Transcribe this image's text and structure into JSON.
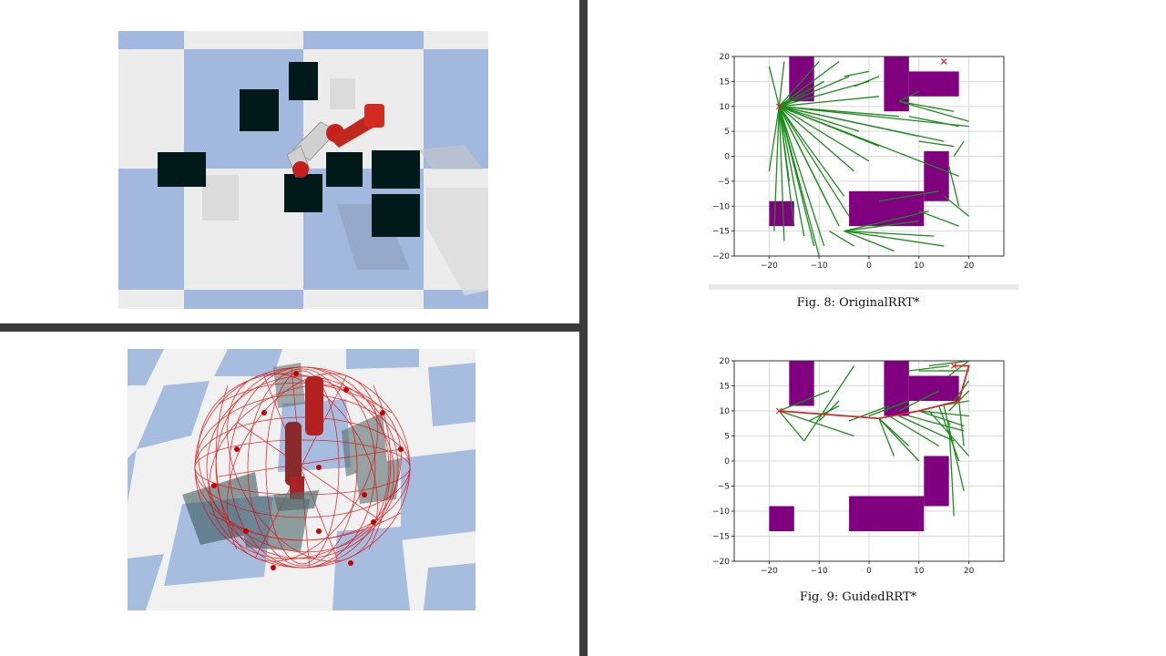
{
  "figures": {
    "fig8_caption": "Fig. 8: OriginalRRT*",
    "fig9_caption": "Fig. 9: GuidedRRT*"
  },
  "colors": {
    "divider": "#3b3b3b",
    "floor_blue": "#a3b8de",
    "floor_white": "#ececec",
    "obstacle_dark": "#021919",
    "robot_red": "#c81e1e",
    "robot_gray": "#cfcfcf",
    "tree_green": "#1a8c1a",
    "obstacle_purple": "#800080",
    "path_red": "#d62728"
  },
  "chart_data": [
    {
      "type": "scatter",
      "ticks_x": [
        "−20",
        "−10",
        "0",
        "10",
        "20"
      ],
      "ticks_y": [
        "20",
        "15",
        "10",
        "5",
        "0",
        "−5",
        "−10",
        "−15",
        "−20"
      ],
      "xlim": [
        -27,
        27
      ],
      "ylim": [
        -20,
        20
      ],
      "grid": true,
      "obstacles": [
        {
          "x0": -16,
          "x1": -11,
          "y0": 11,
          "y1": 20
        },
        {
          "x0": 3,
          "x1": 8,
          "y0": 9,
          "y1": 20
        },
        {
          "x0": 8,
          "x1": 18,
          "y0": 12,
          "y1": 17
        },
        {
          "x0": 11,
          "x1": 16,
          "y0": -9,
          "y1": 1
        },
        {
          "x0": -4,
          "x1": 11,
          "y0": -14,
          "y1": -7
        },
        {
          "x0": -20,
          "x1": -15,
          "y0": -14,
          "y1": -9
        }
      ],
      "start": [
        -18,
        10
      ],
      "goal": [
        15,
        19
      ],
      "tree_root": [
        -18,
        10
      ],
      "tree_segments": [
        [
          -18,
          10,
          -20,
          -3
        ],
        [
          -18,
          10,
          -19,
          -15
        ],
        [
          -18,
          10,
          -17,
          -17
        ],
        [
          -18,
          10,
          -15,
          -14
        ],
        [
          -18,
          10,
          -13,
          -16
        ],
        [
          -18,
          10,
          -11,
          -18
        ],
        [
          -18,
          10,
          -10,
          -20
        ],
        [
          -18,
          10,
          -9,
          -18
        ],
        [
          -18,
          10,
          -8,
          -10
        ],
        [
          -18,
          10,
          -6,
          -14
        ],
        [
          -18,
          10,
          -5,
          -8
        ],
        [
          -18,
          10,
          -4,
          -12
        ],
        [
          -18,
          10,
          -3,
          -3
        ],
        [
          -18,
          10,
          -16,
          -5
        ],
        [
          -18,
          10,
          -20,
          18
        ],
        [
          -18,
          10,
          -17,
          19
        ],
        [
          -18,
          10,
          -10,
          19
        ],
        [
          -18,
          10,
          -9,
          15
        ],
        [
          -18,
          10,
          -6,
          19
        ],
        [
          -18,
          10,
          -4,
          16
        ],
        [
          -18,
          10,
          0,
          15
        ],
        [
          -18,
          10,
          2,
          12
        ],
        [
          -18,
          10,
          6,
          8
        ],
        [
          -18,
          10,
          10,
          4
        ],
        [
          -18,
          10,
          15,
          3
        ],
        [
          -18,
          10,
          18,
          -4
        ],
        [
          -18,
          10,
          20,
          6
        ],
        [
          -18,
          10,
          2,
          2
        ],
        [
          -18,
          10,
          -2,
          5
        ],
        [
          -18,
          10,
          0,
          -1
        ],
        [
          -5,
          16,
          0,
          17
        ],
        [
          -3,
          14,
          2,
          16
        ],
        [
          6,
          11,
          10,
          13
        ],
        [
          6,
          11,
          17,
          9
        ],
        [
          6,
          11,
          20,
          7
        ],
        [
          8,
          8,
          18,
          6
        ],
        [
          10,
          3,
          17,
          2
        ],
        [
          15,
          -8,
          20,
          -12
        ],
        [
          16,
          -2,
          18,
          -10
        ],
        [
          -5,
          -15,
          10,
          -13
        ],
        [
          -5,
          -15,
          13,
          -16
        ],
        [
          -5,
          -15,
          15,
          -18
        ],
        [
          -5,
          -15,
          12,
          -11
        ],
        [
          -5,
          -15,
          5,
          -19
        ],
        [
          -8,
          -15,
          -3,
          -18
        ],
        [
          10,
          -11,
          18,
          -14
        ],
        [
          2,
          -9,
          14,
          -7
        ],
        [
          17,
          0,
          19,
          3
        ]
      ]
    },
    {
      "type": "scatter",
      "ticks_x": [
        "−20",
        "−10",
        "0",
        "10",
        "20"
      ],
      "ticks_y": [
        "20",
        "15",
        "10",
        "5",
        "0",
        "−5",
        "−10",
        "−15",
        "−20"
      ],
      "xlim": [
        -27,
        27
      ],
      "ylim": [
        -20,
        20
      ],
      "grid": true,
      "obstacles": [
        {
          "x0": -16,
          "x1": -11,
          "y0": 11,
          "y1": 20
        },
        {
          "x0": 3,
          "x1": 8,
          "y0": 9,
          "y1": 20
        },
        {
          "x0": 8,
          "x1": 18,
          "y0": 12,
          "y1": 17
        },
        {
          "x0": 11,
          "x1": 16,
          "y0": -9,
          "y1": 1
        },
        {
          "x0": -4,
          "x1": 11,
          "y0": -14,
          "y1": -7
        },
        {
          "x0": -20,
          "x1": -15,
          "y0": -14,
          "y1": -9
        }
      ],
      "start": [
        -18,
        10
      ],
      "goal": [
        17,
        19
      ],
      "path": [
        [
          -18,
          10
        ],
        [
          2,
          8.5
        ],
        [
          10,
          10
        ],
        [
          18,
          12
        ],
        [
          20,
          19
        ],
        [
          17,
          19
        ]
      ],
      "tree_segments": [
        [
          -18,
          10,
          -13,
          4
        ],
        [
          -18,
          10,
          -3,
          5
        ],
        [
          -18,
          10,
          -8,
          14
        ],
        [
          -13,
          4,
          -3,
          19
        ],
        [
          -10,
          8,
          -6,
          12
        ],
        [
          -12,
          8,
          -6,
          11
        ],
        [
          2,
          8.5,
          8,
          3
        ],
        [
          2,
          8.5,
          5,
          1
        ],
        [
          2,
          8.5,
          10,
          0
        ],
        [
          4,
          9,
          14,
          3
        ],
        [
          6,
          9,
          17,
          4
        ],
        [
          8,
          9,
          19,
          6
        ],
        [
          10,
          10,
          20,
          9
        ],
        [
          10,
          10,
          19,
          7
        ],
        [
          12,
          10,
          20,
          1
        ],
        [
          14,
          11,
          20,
          12
        ],
        [
          14,
          11,
          18,
          0
        ],
        [
          15,
          11,
          19,
          -6
        ],
        [
          16,
          8,
          17,
          -11
        ],
        [
          16,
          10,
          20,
          14
        ],
        [
          17,
          12,
          20,
          16
        ],
        [
          18,
          12,
          19,
          3
        ],
        [
          8,
          18,
          16,
          19
        ],
        [
          10,
          18,
          17,
          18
        ],
        [
          12,
          19,
          20,
          20
        ],
        [
          14,
          18,
          20,
          18
        ],
        [
          16,
          17,
          20,
          20
        ],
        [
          -4,
          8,
          4,
          11
        ],
        [
          0,
          9,
          8,
          12
        ],
        [
          6,
          10,
          14,
          14
        ]
      ]
    }
  ]
}
